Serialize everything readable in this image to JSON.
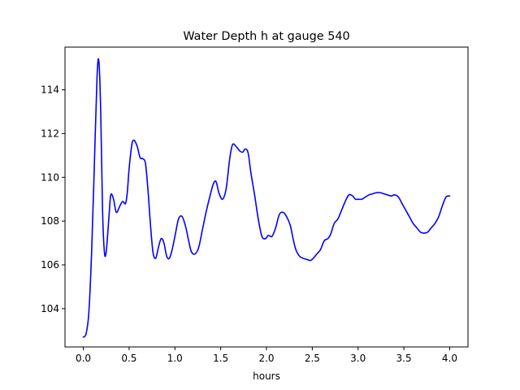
{
  "chart_data": {
    "type": "line",
    "title": "Water Depth h at gauge 540",
    "xlabel": "hours",
    "ylabel": "",
    "xlim": [
      -0.2,
      4.2
    ],
    "ylim": [
      102.25,
      115.95
    ],
    "grid": false,
    "xticks": [
      0.0,
      0.5,
      1.0,
      1.5,
      2.0,
      2.5,
      3.0,
      3.5,
      4.0
    ],
    "xtick_labels": [
      "0.0",
      "0.5",
      "1.0",
      "1.5",
      "2.0",
      "2.5",
      "3.0",
      "3.5",
      "4.0"
    ],
    "yticks": [
      104,
      106,
      108,
      110,
      112,
      114
    ],
    "ytick_labels": [
      "104",
      "106",
      "108",
      "110",
      "112",
      "114"
    ],
    "series": [
      {
        "color": "#0000ff",
        "x": [
          0.0,
          0.03,
          0.06,
          0.09,
          0.12,
          0.15,
          0.17,
          0.19,
          0.21,
          0.23,
          0.25,
          0.28,
          0.3,
          0.33,
          0.36,
          0.4,
          0.43,
          0.46,
          0.48,
          0.5,
          0.53,
          0.55,
          0.57,
          0.59,
          0.62,
          0.65,
          0.68,
          0.71,
          0.73,
          0.76,
          0.79,
          0.82,
          0.85,
          0.88,
          0.91,
          0.94,
          0.97,
          1.0,
          1.04,
          1.08,
          1.12,
          1.15,
          1.18,
          1.22,
          1.26,
          1.3,
          1.34,
          1.38,
          1.42,
          1.45,
          1.48,
          1.52,
          1.56,
          1.6,
          1.63,
          1.67,
          1.71,
          1.74,
          1.77,
          1.8,
          1.83,
          1.87,
          1.91,
          1.95,
          1.99,
          2.02,
          2.06,
          2.1,
          2.14,
          2.18,
          2.22,
          2.26,
          2.29,
          2.32,
          2.36,
          2.4,
          2.44,
          2.48,
          2.51,
          2.55,
          2.59,
          2.63,
          2.67,
          2.7,
          2.74,
          2.78,
          2.82,
          2.86,
          2.9,
          2.94,
          2.97,
          3.0,
          3.04,
          3.08,
          3.12,
          3.16,
          3.2,
          3.24,
          3.28,
          3.32,
          3.36,
          3.4,
          3.44,
          3.48,
          3.52,
          3.56,
          3.6,
          3.64,
          3.68,
          3.72,
          3.76,
          3.8,
          3.84,
          3.88,
          3.92,
          3.96,
          4.0
        ],
        "y": [
          102.7,
          102.85,
          103.8,
          106.5,
          110.5,
          114.6,
          115.3,
          113.0,
          108.5,
          106.6,
          106.6,
          108.2,
          109.2,
          109.0,
          108.4,
          108.7,
          108.9,
          108.8,
          109.3,
          110.4,
          111.5,
          111.7,
          111.6,
          111.4,
          110.9,
          110.85,
          110.6,
          109.2,
          108.0,
          106.6,
          106.3,
          106.8,
          107.2,
          107.0,
          106.4,
          106.3,
          106.7,
          107.3,
          108.1,
          108.2,
          107.7,
          107.1,
          106.6,
          106.5,
          106.8,
          107.6,
          108.4,
          109.1,
          109.7,
          109.8,
          109.3,
          109.0,
          109.5,
          110.9,
          111.5,
          111.4,
          111.2,
          111.15,
          111.3,
          111.1,
          110.2,
          109.2,
          108.1,
          107.3,
          107.2,
          107.35,
          107.3,
          107.7,
          108.3,
          108.4,
          108.2,
          107.8,
          107.2,
          106.7,
          106.4,
          106.3,
          106.25,
          106.2,
          106.3,
          106.5,
          106.7,
          107.1,
          107.2,
          107.4,
          107.9,
          108.1,
          108.5,
          108.9,
          109.2,
          109.15,
          109.0,
          109.0,
          109.0,
          109.1,
          109.2,
          109.25,
          109.3,
          109.3,
          109.25,
          109.2,
          109.15,
          109.2,
          109.1,
          108.8,
          108.5,
          108.2,
          107.9,
          107.7,
          107.5,
          107.45,
          107.5,
          107.7,
          107.9,
          108.2,
          108.7,
          109.1,
          109.15
        ]
      }
    ]
  }
}
